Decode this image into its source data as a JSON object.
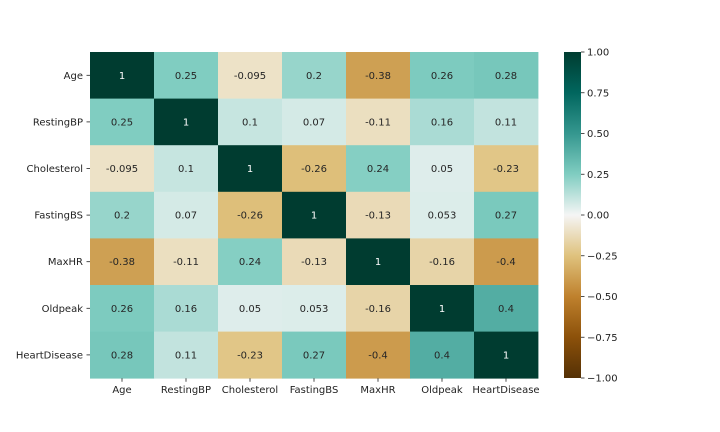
{
  "chart_data": {
    "type": "heatmap",
    "title": "",
    "xlabel": "",
    "ylabel": "",
    "x_categories": [
      "Age",
      "RestingBP",
      "Cholesterol",
      "FastingBS",
      "MaxHR",
      "Oldpeak",
      "HeartDisease"
    ],
    "y_categories": [
      "Age",
      "RestingBP",
      "Cholesterol",
      "FastingBS",
      "MaxHR",
      "Oldpeak",
      "HeartDisease"
    ],
    "values": [
      [
        1,
        0.25,
        -0.095,
        0.2,
        -0.38,
        0.26,
        0.28
      ],
      [
        0.25,
        1,
        0.1,
        0.07,
        -0.11,
        0.16,
        0.11
      ],
      [
        -0.095,
        0.1,
        1,
        -0.26,
        0.24,
        0.05,
        -0.23
      ],
      [
        0.2,
        0.07,
        -0.26,
        1,
        -0.13,
        0.053,
        0.27
      ],
      [
        -0.38,
        -0.11,
        0.24,
        -0.13,
        1,
        -0.16,
        -0.4
      ],
      [
        0.26,
        0.16,
        0.05,
        0.053,
        -0.16,
        1,
        0.4
      ],
      [
        0.28,
        0.11,
        -0.23,
        0.27,
        -0.4,
        0.4,
        1
      ]
    ],
    "annotations": [
      [
        "1",
        "0.25",
        "-0.095",
        "0.2",
        "-0.38",
        "0.26",
        "0.28"
      ],
      [
        "0.25",
        "1",
        "0.1",
        "0.07",
        "-0.11",
        "0.16",
        "0.11"
      ],
      [
        "-0.095",
        "0.1",
        "1",
        "-0.26",
        "0.24",
        "0.05",
        "-0.23"
      ],
      [
        "0.2",
        "0.07",
        "-0.26",
        "1",
        "-0.13",
        "0.053",
        "0.27"
      ],
      [
        "-0.38",
        "-0.11",
        "0.24",
        "-0.13",
        "1",
        "-0.16",
        "-0.4"
      ],
      [
        "0.26",
        "0.16",
        "0.05",
        "0.053",
        "-0.16",
        "1",
        "0.4"
      ],
      [
        "0.28",
        "0.11",
        "-0.23",
        "0.27",
        "-0.4",
        "0.4",
        "1"
      ]
    ],
    "colormap": "BrBG",
    "vmin": -1,
    "vmax": 1,
    "colorbar_ticks": [
      1,
      0.75,
      0.5,
      0.25,
      0,
      -0.25,
      -0.5,
      -0.75,
      -1
    ],
    "colorbar_tick_labels": [
      "1.00",
      "0.75",
      "0.50",
      "0.25",
      "0.00",
      "−0.25",
      "−0.50",
      "−0.75",
      "−1.00"
    ],
    "colorbar_stops": [
      {
        "v": -1,
        "color": "#543005"
      },
      {
        "v": -0.75,
        "color": "#8c510a"
      },
      {
        "v": -0.5,
        "color": "#bf812d"
      },
      {
        "v": -0.25,
        "color": "#dfc27d"
      },
      {
        "v": 0,
        "color": "#f5f5f5"
      },
      {
        "v": 0.25,
        "color": "#80cdc1"
      },
      {
        "v": 0.5,
        "color": "#35978f"
      },
      {
        "v": 0.75,
        "color": "#01665e"
      },
      {
        "v": 1,
        "color": "#003c30"
      }
    ],
    "colorbar": true,
    "grid": false
  }
}
